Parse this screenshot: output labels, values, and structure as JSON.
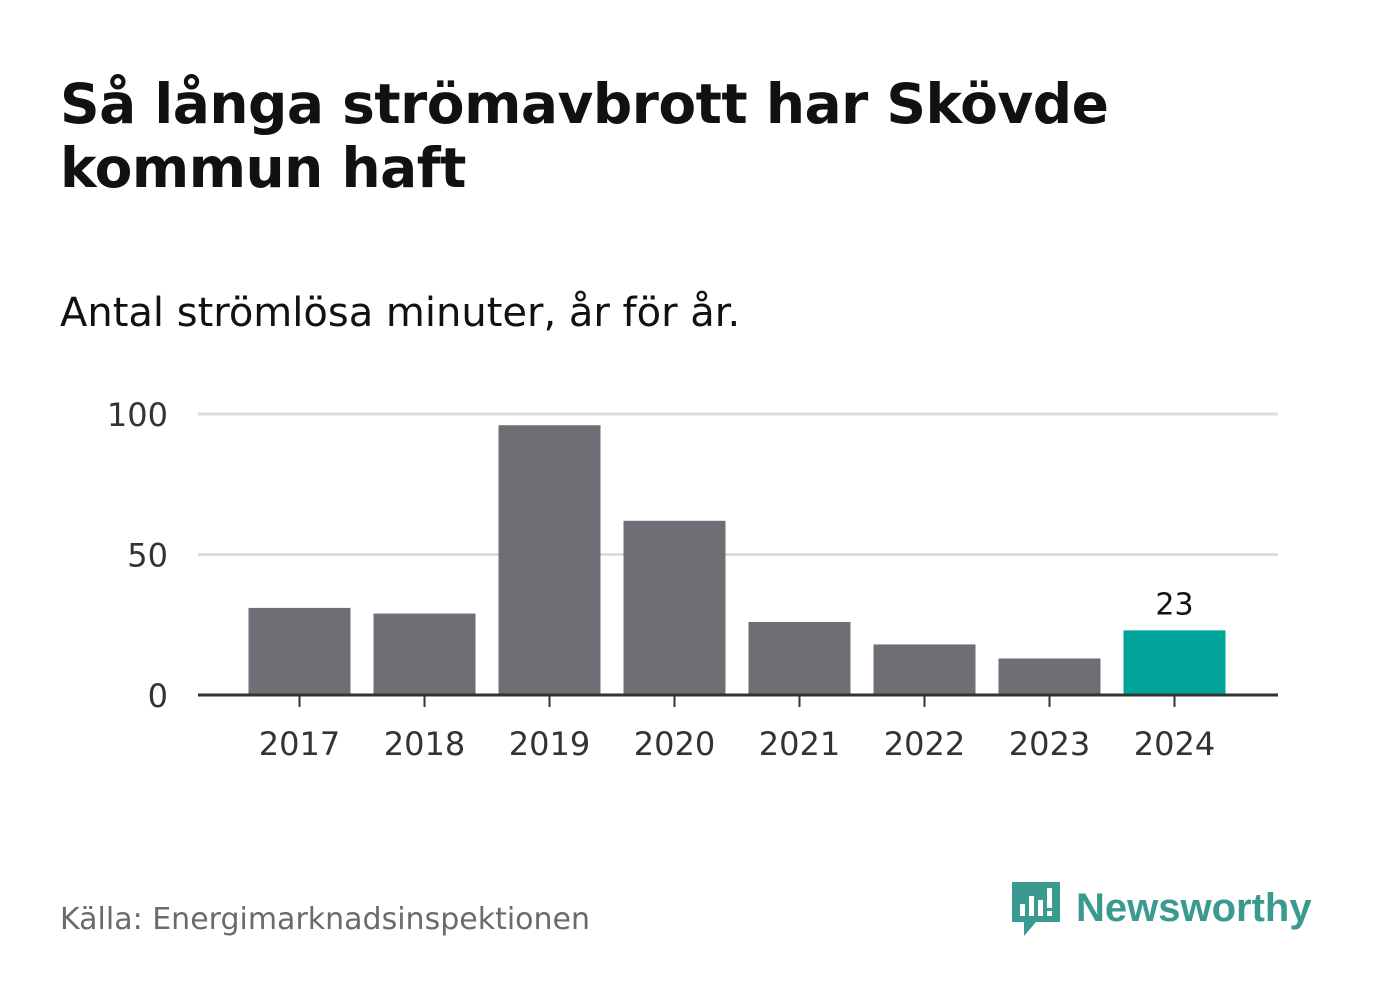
{
  "header": {
    "title": "Så långa strömavbrott har Skövde kommun haft",
    "subtitle": "Antal strömlösa minuter, år för år."
  },
  "footer": {
    "source": "Källa: Energimarknadsinspektionen",
    "brand": "Newsworthy"
  },
  "colors": {
    "bar": "#6f6e74",
    "highlight": "#00a49a",
    "grid": "#dddddd",
    "axis": "#333333",
    "brand": "#3a9a90"
  },
  "chart_data": {
    "type": "bar",
    "title": "Så långa strömavbrott har Skövde kommun haft",
    "subtitle": "Antal strömlösa minuter, år för år.",
    "xlabel": "",
    "ylabel": "",
    "categories": [
      "2017",
      "2018",
      "2019",
      "2020",
      "2021",
      "2022",
      "2023",
      "2024"
    ],
    "values": [
      31,
      29,
      96,
      62,
      26,
      18,
      13,
      23
    ],
    "highlight_index": 7,
    "data_labels": [
      {
        "index": 7,
        "text": "23"
      }
    ],
    "ylim": [
      0,
      100
    ],
    "yticks": [
      0,
      50,
      100
    ],
    "grid": true,
    "legend": "none"
  }
}
